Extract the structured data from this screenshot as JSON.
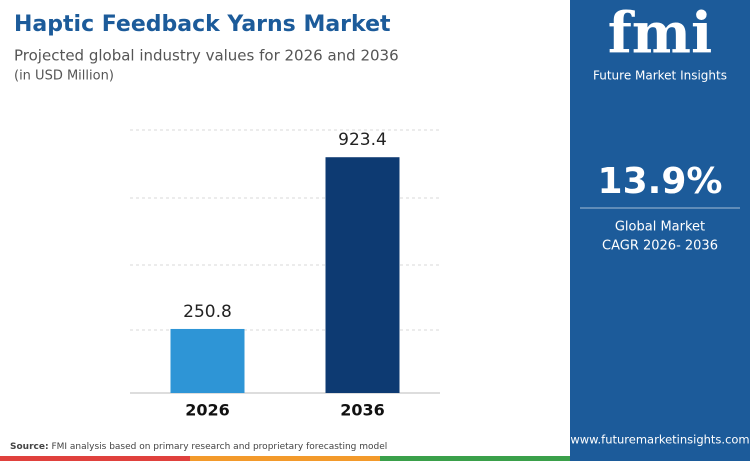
{
  "chart_data": {
    "type": "bar",
    "title": "Haptic Feedback Yarns Market",
    "subtitle": "Projected global industry values for 2026 and 2036",
    "unit_note": "(in USD Million)",
    "categories": [
      "2026",
      "2036"
    ],
    "values": [
      250.8,
      923.4
    ],
    "colors": [
      "#2e95d6",
      "#0d3a72"
    ],
    "ylim": [
      0,
      1030
    ]
  },
  "brand": {
    "logo": "fmi",
    "name": "Future Market Insights",
    "url": "www.futuremarketinsights.com"
  },
  "highlight": {
    "value": "13.9%",
    "line1": "Global Market",
    "line2": "CAGR 2026- 2036"
  },
  "source": {
    "label": "Source:",
    "text": "FMI analysis based on primary research and proprietary forecasting model"
  }
}
